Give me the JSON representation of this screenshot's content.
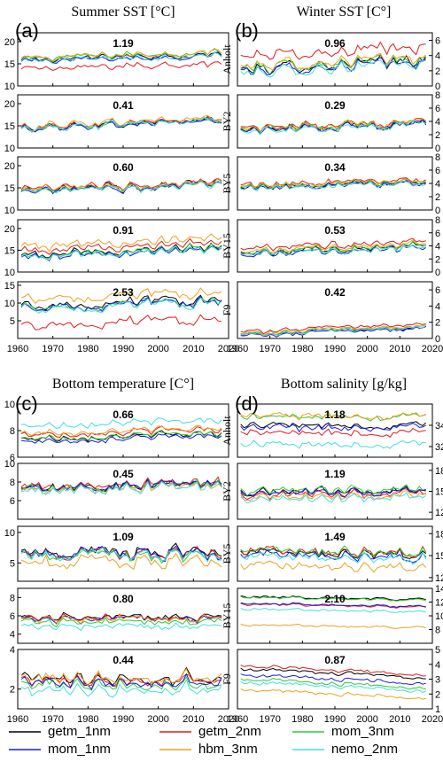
{
  "figure": {
    "series_names": [
      "getm_1nm",
      "getm_2nm",
      "mom_3nm",
      "mom_1nm",
      "hbm_3nm",
      "nemo_2nm"
    ],
    "series_colors": [
      "#000000",
      "#e41a1c",
      "#2ecc2e",
      "#1a1ae6",
      "#f0a020",
      "#40e0e0"
    ]
  },
  "chart_data": [
    {
      "type": "line",
      "letter": "(a)",
      "title": "Summer SST [°C]",
      "xlim": [
        1960,
        2020
      ],
      "xticks": [
        1960,
        1970,
        1980,
        1990,
        2000,
        2010,
        2020
      ],
      "panels": [
        {
          "station": "",
          "value": "1.19",
          "ylim": [
            10,
            22
          ],
          "yticks": [
            10,
            15,
            20
          ],
          "means": [
            16.5,
            14.5,
            17.0,
            16.2,
            17.0,
            16.3
          ],
          "trend": 1.5,
          "amp": 0.9
        },
        {
          "station": "",
          "value": "0.41",
          "ylim": [
            10,
            22
          ],
          "yticks": [
            10,
            15,
            20
          ],
          "means": [
            15.5,
            15.6,
            15.3,
            15.3,
            15.9,
            15.4
          ],
          "trend": 2.0,
          "amp": 1.0
        },
        {
          "station": "",
          "value": "0.60",
          "ylim": [
            10,
            22
          ],
          "yticks": [
            10,
            15,
            20
          ],
          "means": [
            15.2,
            15.5,
            15.0,
            15.0,
            15.3,
            14.9
          ],
          "trend": 2.0,
          "amp": 1.1
        },
        {
          "station": "",
          "value": "0.91",
          "ylim": [
            10,
            22
          ],
          "yticks": [
            10,
            15,
            20
          ],
          "means": [
            14.8,
            15.8,
            14.6,
            14.3,
            16.8,
            14.4
          ],
          "trend": 2.0,
          "amp": 1.0
        },
        {
          "station": "",
          "value": "2.53",
          "ylim": [
            0,
            16
          ],
          "yticks": [
            5,
            10,
            15
          ],
          "means": [
            10.0,
            4.5,
            9.5,
            9.5,
            12.0,
            9.2
          ],
          "trend": 1.5,
          "amp": 1.6
        }
      ]
    },
    {
      "type": "line",
      "letter": "(b)",
      "title": "Winter SST [C°]",
      "xlim": [
        1960,
        2020
      ],
      "xticks": [
        1960,
        1970,
        1980,
        1990,
        2000,
        2010,
        2020
      ],
      "panels": [
        {
          "station": "Anholt",
          "value": "0.96",
          "ylim": [
            0,
            7
          ],
          "yticks": [
            0,
            2,
            4,
            6
          ],
          "means": [
            2.8,
            4.5,
            2.9,
            2.6,
            3.2,
            2.4
          ],
          "trend": 1.2,
          "amp": 0.9
        },
        {
          "station": "BY2",
          "value": "0.29",
          "ylim": [
            0,
            8
          ],
          "yticks": [
            0,
            2,
            4,
            6,
            8
          ],
          "means": [
            3.3,
            3.6,
            3.4,
            3.2,
            3.5,
            3.1
          ],
          "trend": 1.0,
          "amp": 0.7
        },
        {
          "station": "BY5",
          "value": "0.34",
          "ylim": [
            0,
            8
          ],
          "yticks": [
            0,
            2,
            4,
            6,
            8
          ],
          "means": [
            3.8,
            4.2,
            3.9,
            3.7,
            4.0,
            3.6
          ],
          "trend": 1.0,
          "amp": 0.6
        },
        {
          "station": "BY15",
          "value": "0.53",
          "ylim": [
            0,
            8
          ],
          "yticks": [
            0,
            2,
            4,
            6,
            8
          ],
          "means": [
            3.5,
            4.2,
            3.6,
            3.2,
            3.8,
            3.3
          ],
          "trend": 1.3,
          "amp": 0.6
        },
        {
          "station": "F9",
          "value": "0.42",
          "ylim": [
            0,
            7
          ],
          "yticks": [
            0,
            2,
            4,
            6
          ],
          "means": [
            0.9,
            1.3,
            1.0,
            0.8,
            1.1,
            0.9
          ],
          "trend": 1.0,
          "amp": 0.3
        }
      ]
    },
    {
      "type": "line",
      "letter": "(c)",
      "title": "Bottom temperature [C°]",
      "xlim": [
        1960,
        2020
      ],
      "xticks": [
        1960,
        1970,
        1980,
        1990,
        2000,
        2010,
        2020
      ],
      "panels": [
        {
          "station": "",
          "value": "0.66",
          "ylim": [
            6,
            10
          ],
          "yticks": [
            6,
            8,
            10
          ],
          "means": [
            7.6,
            7.9,
            7.6,
            7.4,
            8.0,
            8.6
          ],
          "trend": 0.4,
          "amp": 0.3
        },
        {
          "station": "",
          "value": "0.45",
          "ylim": [
            4,
            10
          ],
          "yticks": [
            6,
            8,
            10
          ],
          "means": [
            7.6,
            7.7,
            7.5,
            7.5,
            7.3,
            7.2
          ],
          "trend": 0.8,
          "amp": 0.7
        },
        {
          "station": "",
          "value": "1.09",
          "ylim": [
            2,
            11
          ],
          "yticks": [
            5,
            10
          ],
          "means": [
            6.8,
            6.6,
            6.3,
            6.6,
            5.2,
            6.4
          ],
          "trend": 0.0,
          "amp": 1.2
        },
        {
          "station": "",
          "value": "0.80",
          "ylim": [
            3,
            9
          ],
          "yticks": [
            4,
            6,
            8
          ],
          "means": [
            5.8,
            5.7,
            5.3,
            5.6,
            5.6,
            4.8
          ],
          "trend": 0.0,
          "amp": 0.5
        },
        {
          "station": "",
          "value": "0.44",
          "ylim": [
            1,
            4
          ],
          "yticks": [
            2,
            4
          ],
          "means": [
            2.6,
            2.5,
            2.3,
            2.4,
            2.6,
            2.0
          ],
          "trend": 0.0,
          "amp": 0.4
        }
      ]
    },
    {
      "type": "line",
      "letter": "(d)",
      "title": "Bottom salinity [g/kg]",
      "xlim": [
        1960,
        2020
      ],
      "xticks": [
        1960,
        1970,
        1980,
        1990,
        2000,
        2010,
        2020
      ],
      "panels": [
        {
          "station": "Anholt",
          "value": "1.18",
          "ylim": [
            31,
            36
          ],
          "yticks": [
            32,
            34
          ],
          "means": [
            34.0,
            33.3,
            34.8,
            33.8,
            34.9,
            32.2
          ],
          "trend": 0.0,
          "amp": 0.4
        },
        {
          "station": "BY2",
          "value": "1.19",
          "ylim": [
            11,
            19
          ],
          "yticks": [
            12,
            15,
            18
          ],
          "means": [
            15.0,
            14.6,
            15.2,
            14.8,
            14.3,
            14.0
          ],
          "trend": 0.0,
          "amp": 0.7
        },
        {
          "station": "BY5",
          "value": "1.49",
          "ylim": [
            11.5,
            19
          ],
          "yticks": [
            12,
            15,
            18
          ],
          "means": [
            15.4,
            15.6,
            15.6,
            15.0,
            13.6,
            14.8
          ],
          "trend": 0.0,
          "amp": 0.8
        },
        {
          "station": "BY15",
          "value": "2.10",
          "ylim": [
            6,
            14
          ],
          "yticks": [
            8,
            10,
            12,
            14
          ],
          "means": [
            12.6,
            11.5,
            12.5,
            11.6,
            8.5,
            10.8
          ],
          "trend": -0.5,
          "amp": 0.2
        },
        {
          "station": "F9",
          "value": "0.87",
          "ylim": [
            1,
            5
          ],
          "yticks": [
            1,
            2,
            3,
            4,
            5
          ],
          "means": [
            3.4,
            3.6,
            2.7,
            3.0,
            2.0,
            2.5
          ],
          "trend": -0.6,
          "amp": 0.15
        }
      ]
    }
  ]
}
